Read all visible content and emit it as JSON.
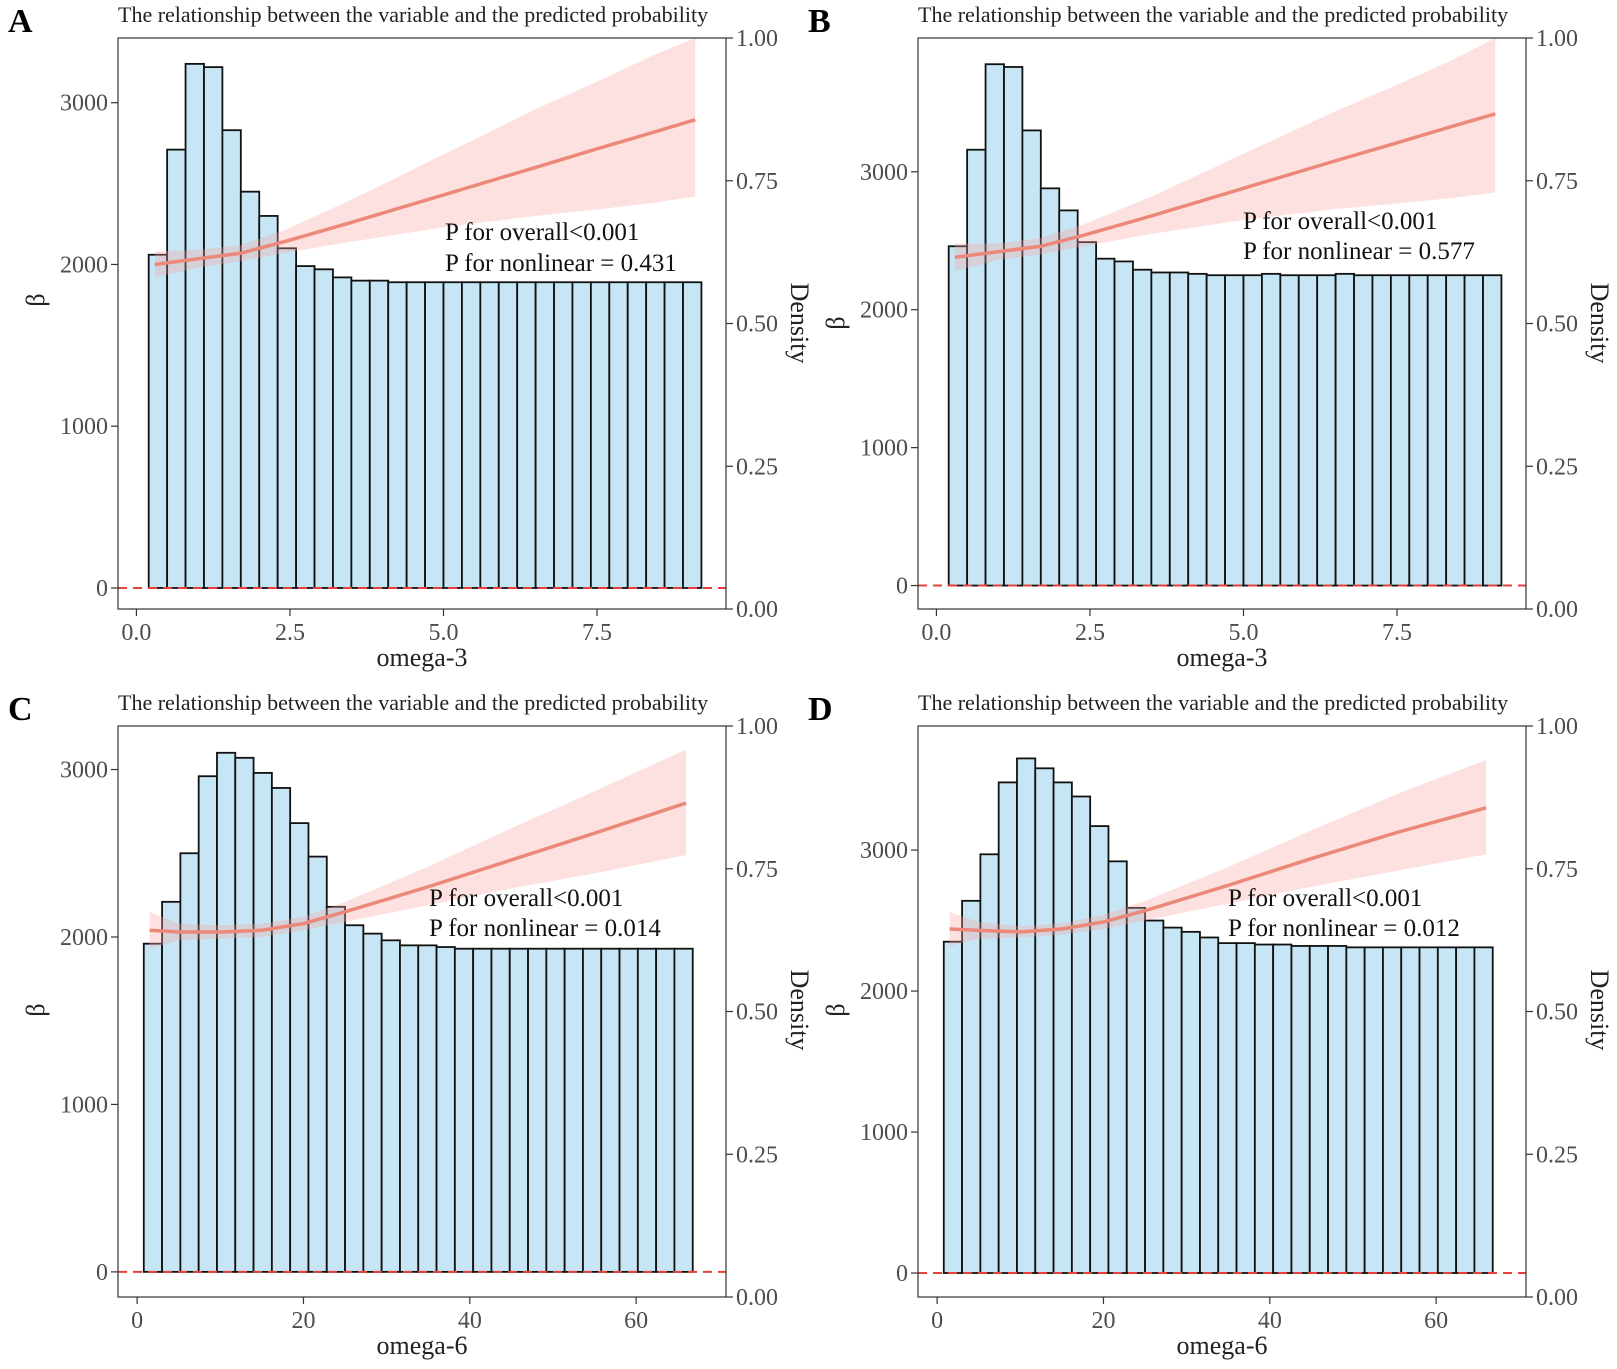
{
  "chart_data": [
    {
      "panel_label": "A",
      "type": "bar",
      "title": "The relationship between the variable and the predicted probability",
      "xlabel": "omega-3",
      "ylabel": "β",
      "y2label": "Density",
      "xlim": [
        -0.3,
        9.6
      ],
      "xticks": [
        0.0,
        2.5,
        5.0,
        7.5
      ],
      "xtick_labels": [
        "0.0",
        "2.5",
        "5.0",
        "7.5"
      ],
      "ylim": [
        -130,
        3400
      ],
      "yticks": [
        0,
        1000,
        2000,
        3000
      ],
      "ytick_labels": [
        "0",
        "1000",
        "2000",
        "3000"
      ],
      "y2ticks": [
        0.0,
        0.25,
        0.5,
        0.75,
        1.0
      ],
      "y2tick_labels": [
        "0.00",
        "0.25",
        "0.50",
        "0.75",
        "1.00"
      ],
      "reference_line_y": 0,
      "histogram": {
        "x_start": 0.2,
        "bin_width": 0.3,
        "values": [
          2060,
          2710,
          3240,
          3220,
          2830,
          2450,
          2300,
          2100,
          1990,
          1970,
          1920,
          1900,
          1900,
          1890,
          1890,
          1890,
          1890,
          1890,
          1890,
          1890,
          1890,
          1890,
          1890,
          1890,
          1890,
          1890,
          1890,
          1890,
          1890,
          1890
        ]
      },
      "fit": {
        "x": [
          0.3,
          1.0,
          1.7,
          2.4,
          3.5,
          5.0,
          6.5,
          7.5,
          8.4,
          9.1
        ],
        "y": [
          2000,
          2035,
          2070,
          2140,
          2260,
          2430,
          2600,
          2715,
          2815,
          2895
        ],
        "lower": [
          1920,
          1980,
          2020,
          2070,
          2140,
          2230,
          2300,
          2340,
          2380,
          2420
        ],
        "upper": [
          2080,
          2090,
          2120,
          2210,
          2400,
          2680,
          2960,
          3130,
          3290,
          3400
        ]
      },
      "annotations": [
        "P for overall<0.001",
        "P for nonlinear = 0.431"
      ]
    },
    {
      "panel_label": "B",
      "type": "bar",
      "title": "The relationship between the variable and the predicted probability",
      "xlabel": "omega-3",
      "ylabel": "β",
      "y2label": "Density",
      "xlim": [
        -0.3,
        9.6
      ],
      "xticks": [
        0.0,
        2.5,
        5.0,
        7.5
      ],
      "xtick_labels": [
        "0.0",
        "2.5",
        "5.0",
        "7.5"
      ],
      "ylim": [
        -170,
        3970
      ],
      "yticks": [
        0,
        1000,
        2000,
        3000
      ],
      "ytick_labels": [
        "0",
        "1000",
        "2000",
        "3000"
      ],
      "y2ticks": [
        0.0,
        0.25,
        0.5,
        0.75,
        1.0
      ],
      "y2tick_labels": [
        "0.00",
        "0.25",
        "0.50",
        "0.75",
        "1.00"
      ],
      "reference_line_y": 0,
      "histogram": {
        "x_start": 0.2,
        "bin_width": 0.3,
        "values": [
          2460,
          3160,
          3780,
          3760,
          3300,
          2880,
          2720,
          2490,
          2370,
          2350,
          2290,
          2270,
          2270,
          2260,
          2250,
          2250,
          2250,
          2260,
          2250,
          2250,
          2250,
          2260,
          2250,
          2250,
          2250,
          2250,
          2250,
          2250,
          2250,
          2250
        ]
      },
      "fit": {
        "x": [
          0.3,
          1.0,
          1.7,
          2.4,
          3.5,
          5.0,
          6.5,
          7.5,
          8.4,
          9.1
        ],
        "y": [
          2380,
          2420,
          2460,
          2540,
          2680,
          2880,
          3080,
          3210,
          3330,
          3420
        ],
        "lower": [
          2280,
          2360,
          2400,
          2460,
          2550,
          2650,
          2730,
          2770,
          2810,
          2850
        ],
        "upper": [
          2480,
          2480,
          2520,
          2620,
          2820,
          3130,
          3440,
          3630,
          3810,
          3970
        ]
      },
      "annotations": [
        "P for overall<0.001",
        "P for nonlinear = 0.577"
      ]
    },
    {
      "panel_label": "C",
      "type": "bar",
      "title": "The relationship between the variable and the predicted probability",
      "xlabel": "omega-6",
      "ylabel": "β",
      "y2label": "Density",
      "xlim": [
        -2.3,
        70.8
      ],
      "xticks": [
        0,
        20,
        40,
        60
      ],
      "xtick_labels": [
        "0",
        "20",
        "40",
        "60"
      ],
      "ylim": [
        -150,
        3260
      ],
      "yticks": [
        0,
        1000,
        2000,
        3000
      ],
      "ytick_labels": [
        "0",
        "1000",
        "2000",
        "3000"
      ],
      "y2ticks": [
        0.0,
        0.25,
        0.5,
        0.75,
        1.0
      ],
      "y2tick_labels": [
        "0.00",
        "0.25",
        "0.50",
        "0.75",
        "1.00"
      ],
      "reference_line_y": 0,
      "histogram": {
        "x_start": 0.8,
        "bin_width": 2.2,
        "values": [
          1960,
          2210,
          2500,
          2960,
          3100,
          3070,
          2980,
          2890,
          2680,
          2480,
          2180,
          2070,
          2020,
          1980,
          1950,
          1950,
          1940,
          1930,
          1930,
          1930,
          1930,
          1930,
          1930,
          1930,
          1930,
          1930,
          1930,
          1930,
          1930,
          1930
        ]
      },
      "fit": {
        "x": [
          1.5,
          5,
          10,
          15,
          20,
          25,
          35,
          45,
          55,
          66
        ],
        "y": [
          2040,
          2030,
          2030,
          2040,
          2080,
          2150,
          2300,
          2460,
          2620,
          2800
        ],
        "lower": [
          1930,
          1980,
          1990,
          2000,
          2040,
          2090,
          2190,
          2290,
          2380,
          2490
        ],
        "upper": [
          2150,
          2080,
          2070,
          2080,
          2120,
          2210,
          2420,
          2650,
          2870,
          3120
        ]
      },
      "annotations": [
        "P for overall<0.001",
        "P for nonlinear = 0.014"
      ]
    },
    {
      "panel_label": "D",
      "type": "bar",
      "title": "The relationship between the variable and the predicted probability",
      "xlabel": "omega-6",
      "ylabel": "β",
      "y2label": "Density",
      "xlim": [
        -2.3,
        70.8
      ],
      "xticks": [
        0,
        20,
        40,
        60
      ],
      "xtick_labels": [
        "0",
        "20",
        "40",
        "60"
      ],
      "ylim": [
        -170,
        3880
      ],
      "yticks": [
        0,
        1000,
        2000,
        3000
      ],
      "ytick_labels": [
        "0",
        "1000",
        "2000",
        "3000"
      ],
      "y2ticks": [
        0.0,
        0.25,
        0.5,
        0.75,
        1.0
      ],
      "y2tick_labels": [
        "0.00",
        "0.25",
        "0.50",
        "0.75",
        "1.00"
      ],
      "reference_line_y": 0,
      "histogram": {
        "x_start": 0.8,
        "bin_width": 2.2,
        "values": [
          2350,
          2640,
          2970,
          3480,
          3650,
          3580,
          3480,
          3380,
          3170,
          2920,
          2590,
          2500,
          2450,
          2420,
          2380,
          2340,
          2340,
          2330,
          2330,
          2320,
          2320,
          2320,
          2310,
          2310,
          2310,
          2310,
          2310,
          2310,
          2310,
          2310
        ]
      },
      "fit": {
        "x": [
          1.5,
          5,
          10,
          15,
          20,
          25,
          35,
          45,
          55,
          66
        ],
        "y": [
          2440,
          2430,
          2420,
          2440,
          2490,
          2570,
          2750,
          2940,
          3120,
          3300
        ],
        "lower": [
          2320,
          2370,
          2380,
          2400,
          2440,
          2500,
          2620,
          2740,
          2850,
          2970
        ],
        "upper": [
          2560,
          2490,
          2460,
          2480,
          2540,
          2640,
          2880,
          3140,
          3390,
          3640
        ]
      },
      "annotations": [
        "P for overall<0.001",
        "P for nonlinear = 0.012"
      ]
    }
  ]
}
